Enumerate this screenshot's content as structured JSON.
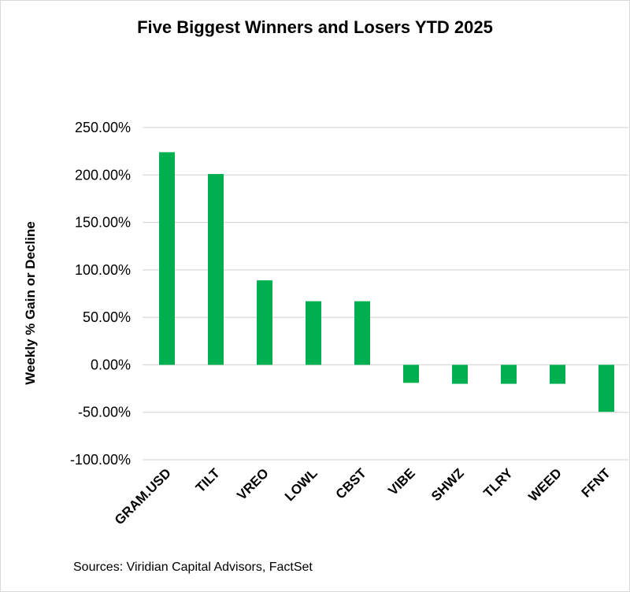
{
  "chart_data": {
    "type": "bar",
    "title": "Five Biggest Winners and Losers YTD 2025",
    "xlabel": "",
    "ylabel": "Weekly % Gain or Decline",
    "categories": [
      "GRAM.USD",
      "TILT",
      "VREO",
      "LOWL",
      "CBST",
      "VIBE",
      "SHWZ",
      "TLRY",
      "WEED",
      "FFNT"
    ],
    "values": [
      224,
      201,
      89,
      67,
      67,
      -19,
      -20,
      -20,
      -20,
      -49.5
    ],
    "ylim": [
      -100,
      250
    ],
    "yticks": [
      250,
      200,
      150,
      100,
      50,
      0,
      -50,
      -100
    ],
    "ytick_labels": [
      "250.00%",
      "200.00%",
      "150.00%",
      "100.00%",
      "50.00%",
      "0.00%",
      "-50.00%",
      "-100.00%"
    ],
    "grid": true,
    "bar_color": "#00b050",
    "source": "Sources: Viridian Capital Advisors, FactSet"
  }
}
